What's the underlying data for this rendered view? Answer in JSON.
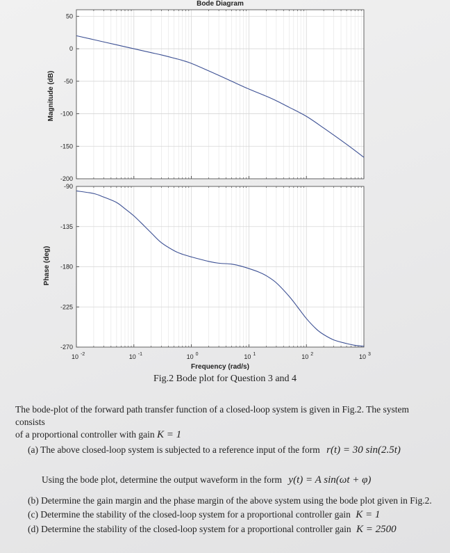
{
  "chart_data": {
    "type": "line",
    "title": "Bode Diagram",
    "xlabel": "Frequency (rad/s)",
    "x_scale": "log",
    "xlim": [
      0.01,
      1000
    ],
    "x_ticks": [
      {
        "value": 0.01,
        "base": "10",
        "exp": "-2"
      },
      {
        "value": 0.1,
        "base": "10",
        "exp": "-1"
      },
      {
        "value": 1,
        "base": "10",
        "exp": "0"
      },
      {
        "value": 10,
        "base": "10",
        "exp": "1"
      },
      {
        "value": 100,
        "base": "10",
        "exp": "2"
      },
      {
        "value": 1000,
        "base": "10",
        "exp": "3"
      }
    ],
    "grid": true,
    "line_color": "#3b4f93",
    "panels": [
      {
        "name": "magnitude",
        "ylabel": "Magnitude (dB)",
        "ylim": [
          -200,
          60
        ],
        "yticks": [
          50,
          0,
          -50,
          -100,
          -150,
          -200
        ],
        "series": [
          {
            "x": [
              0.01,
              0.02,
              0.05,
              0.1,
              0.2,
              0.3,
              0.5,
              0.7,
              1,
              2,
              3,
              5,
              10,
              20,
              30,
              50,
              100,
              200,
              500,
              1000
            ],
            "y": [
              20,
              14,
              6,
              0,
              -6,
              -9.5,
              -14.5,
              -18,
              -22.5,
              -34,
              -41,
              -50,
              -62,
              -73,
              -80,
              -90,
              -104,
              -122,
              -147,
              -167
            ]
          }
        ]
      },
      {
        "name": "phase",
        "ylabel": "Phase (deg)",
        "ylim": [
          -270,
          -90
        ],
        "yticks": [
          -90,
          -135,
          -180,
          -225,
          -270
        ],
        "series": [
          {
            "x": [
              0.01,
              0.02,
              0.03,
              0.05,
              0.07,
              0.1,
              0.15,
              0.2,
              0.3,
              0.5,
              0.7,
              1,
              2,
              3,
              5,
              7,
              10,
              15,
              20,
              30,
              50,
              70,
              100,
              150,
              200,
              300,
              500,
              700,
              1000
            ],
            "y": [
              -95,
              -98,
              -102,
              -108,
              -115,
              -123,
              -134,
              -142,
              -153,
              -162,
              -166,
              -169,
              -174,
              -176,
              -177,
              -179,
              -182,
              -186,
              -190,
              -198,
              -213,
              -225,
              -238,
              -250,
              -256,
              -262,
              -266,
              -268,
              -269
            ]
          }
        ]
      }
    ]
  },
  "figure": {
    "caption": "Fig.2 Bode plot for Question 3 and 4"
  },
  "text": {
    "intro_line1": "The bode-plot of the forward path transfer function of a closed-loop system is given in Fig.2. The system consists",
    "intro_line2": "of a proportional controller with gain",
    "intro_math": "K = 1",
    "qa_prefix": "(a)  The above closed-loop system is subjected to a reference input of the form",
    "qa_math": "r(t) = 30 sin(2.5t)",
    "qa2_prefix": "Using the bode plot, determine the output waveform in the form",
    "qa2_math": "y(t) = A sin(ωt + φ)",
    "qb": "(b)  Determine the gain margin and the phase margin of the above system using the bode plot given in Fig.2.",
    "qc_prefix": "(c)  Determine the stability of the closed-loop system for a proportional controller gain",
    "qc_math": "K = 1",
    "qd_prefix": "(d)  Determine the stability of the closed-loop system for a proportional controller gain",
    "qd_math": "K = 2500"
  }
}
